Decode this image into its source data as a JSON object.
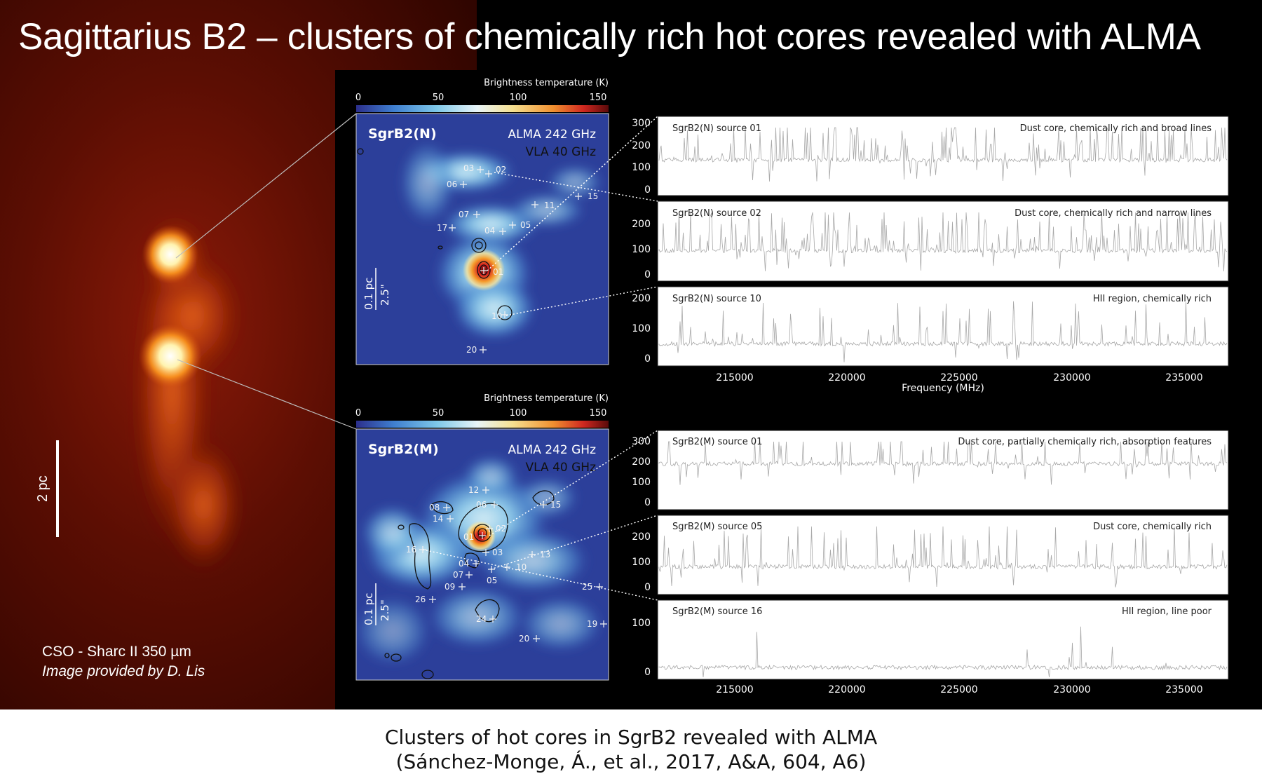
{
  "figure": {
    "title": "Sagittarius B2 – clusters of chemically rich hot cores revealed with ALMA",
    "cso": {
      "caption_line1": "CSO - Sharc II 350 µm",
      "caption_line2": "Image provided by D. Lis",
      "scale_label": "2 pc"
    },
    "maps": [
      {
        "name": "SgrB2(N)",
        "line1": "ALMA 242 GHz",
        "line2": "VLA 40 GHz",
        "colorbar_title": "Brightness temperature (K)",
        "colorbar_ticks": [
          "0",
          "50",
          "100",
          "150"
        ],
        "scale_pc": "0.1 pc",
        "scale_arcsec": "2.5\"",
        "sources": [
          "03",
          "02",
          "06",
          "15",
          "11",
          "07",
          "17",
          "04",
          "05",
          "01",
          "10",
          "20"
        ]
      },
      {
        "name": "SgrB2(M)",
        "line1": "ALMA 242 GHz",
        "line2": "VLA 40 GHz",
        "colorbar_title": "Brightness temperature (K)",
        "colorbar_ticks": [
          "0",
          "50",
          "100",
          "150"
        ],
        "scale_pc": "0.1 pc",
        "scale_arcsec": "2.5\"",
        "sources": [
          "12",
          "08",
          "06",
          "15",
          "14",
          "01",
          "02",
          "16",
          "03",
          "13",
          "04",
          "10",
          "07",
          "05",
          "25",
          "09",
          "26",
          "24",
          "19",
          "20"
        ]
      }
    ],
    "spectra_groups": [
      {
        "x_ticks": [
          "215000",
          "220000",
          "225000",
          "230000",
          "235000"
        ],
        "xlabel": "Frequency (MHz)",
        "panels": [
          {
            "label": "SgrB2(N) source 01",
            "desc": "Dust core, chemically rich and broad lines",
            "y_ticks": [
              "300",
              "200",
              "100",
              "0"
            ]
          },
          {
            "label": "SgrB2(N) source 02",
            "desc": "Dust core, chemically rich and narrow lines",
            "y_ticks": [
              "200",
              "100",
              "0"
            ]
          },
          {
            "label": "SgrB2(N) source 10",
            "desc": "HII region, chemically rich",
            "y_ticks": [
              "200",
              "100",
              "0"
            ]
          }
        ]
      },
      {
        "x_ticks": [
          "215000",
          "220000",
          "225000",
          "230000",
          "235000"
        ],
        "xlabel": "",
        "panels": [
          {
            "label": "SgrB2(M) source 01",
            "desc": "Dust core, partially chemically rich, absorption features",
            "y_ticks": [
              "300",
              "200",
              "100",
              "0"
            ]
          },
          {
            "label": "SgrB2(M) source 05",
            "desc": "Dust core, chemically rich",
            "y_ticks": [
              "200",
              "100",
              "0"
            ]
          },
          {
            "label": "SgrB2(M) source 16",
            "desc": "HII region, line poor",
            "y_ticks": [
              "100",
              "0"
            ]
          }
        ]
      }
    ]
  },
  "caption": {
    "line1": "Clusters of hot cores in SgrB2 revealed with ALMA",
    "line2": "(Sánchez-Monge, Á., et al., 2017, A&A, 604, A6)"
  },
  "colors": {
    "background": "#000000",
    "spectrum": "#a8a8a8",
    "map_blue": "#2c3f9a"
  }
}
